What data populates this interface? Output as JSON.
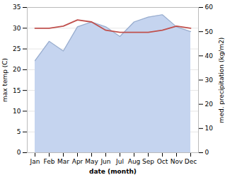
{
  "chart_data": {
    "type": "line",
    "categories": [
      "Jan",
      "Feb",
      "Mar",
      "Apr",
      "May",
      "Jun",
      "Jul",
      "Aug",
      "Sep",
      "Oct",
      "Nov",
      "Dec"
    ],
    "xlabel": "date (month)",
    "ylabel": "max temp (C)",
    "y2label": "med. precipitation (kg/m2)",
    "ylim": [
      0,
      35
    ],
    "yticks": [
      0,
      5,
      10,
      15,
      20,
      25,
      30,
      35
    ],
    "y2lim": [
      0,
      60
    ],
    "y2ticks": [
      0,
      10,
      20,
      30,
      40,
      50,
      60
    ],
    "grid": true,
    "series": [
      {
        "type": "line",
        "color": "#c0504d",
        "values": [
          30.0,
          30.0,
          30.5,
          32.0,
          31.5,
          29.5,
          29.0,
          29.0,
          29.0,
          29.5,
          30.5,
          30.0
        ]
      },
      {
        "type": "area",
        "axis": "y2",
        "color": "#c5d4ef",
        "values": [
          38,
          46,
          42,
          52,
          54,
          52,
          48,
          54,
          56,
          57,
          52,
          50
        ]
      },
      {
        "type": "line",
        "axis": "y2",
        "color": "#9aaece",
        "values": [
          38,
          46,
          42,
          52,
          54,
          52,
          48,
          54,
          56,
          57,
          52,
          50
        ]
      }
    ]
  }
}
